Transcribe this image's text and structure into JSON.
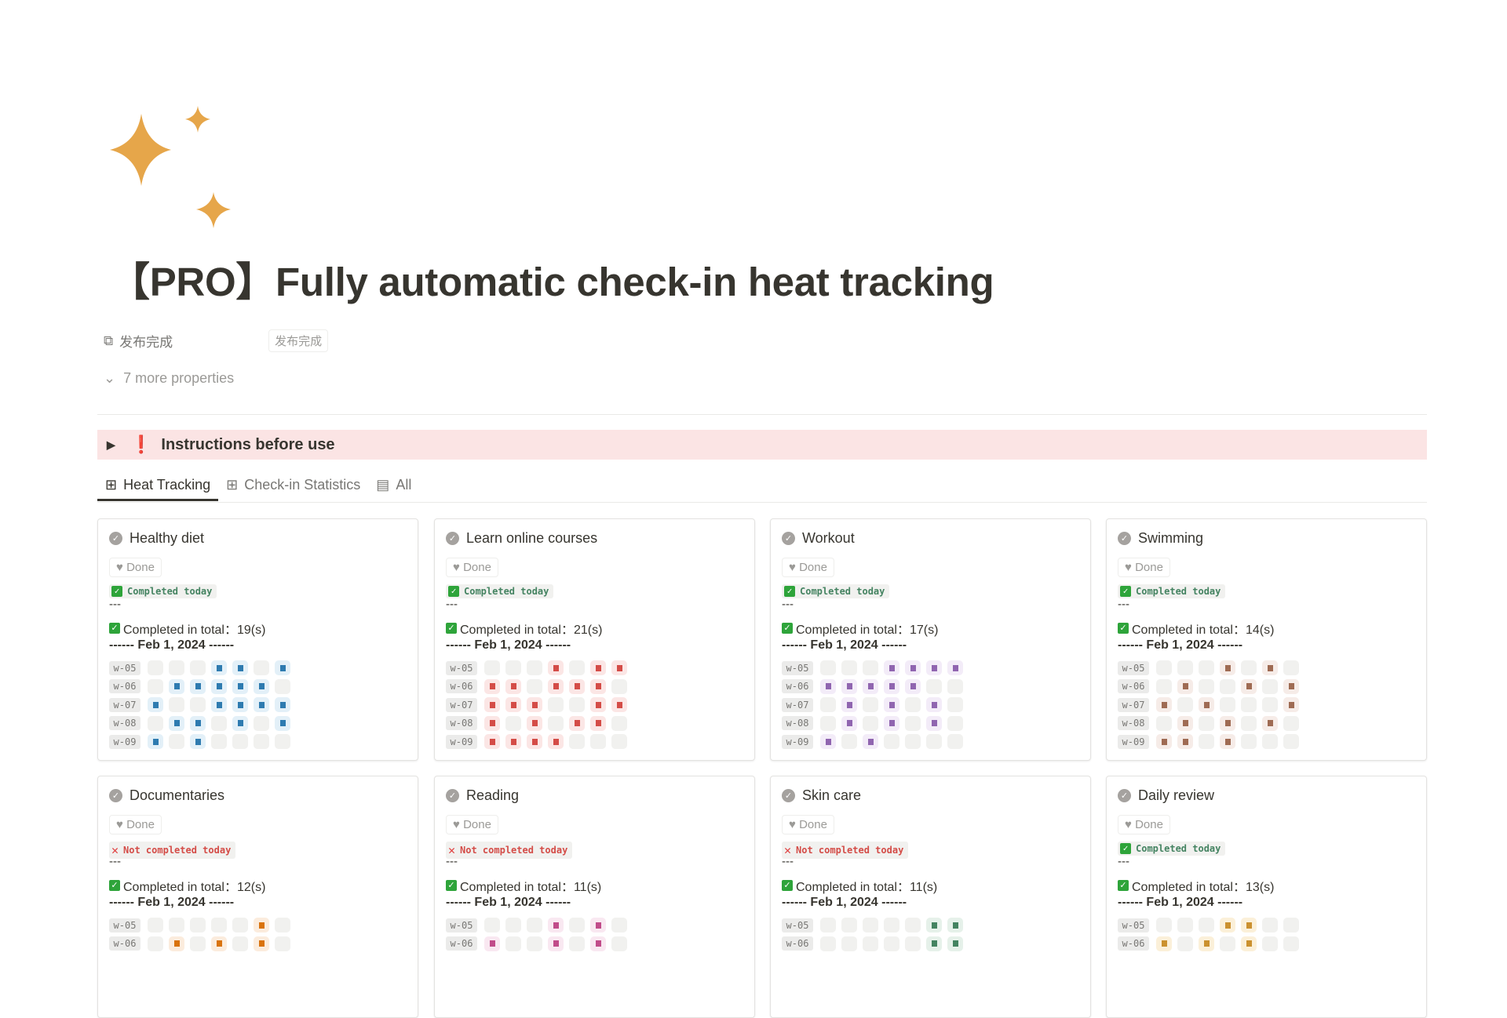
{
  "page": {
    "title": "【PRO】Fully automatic check-in heat tracking",
    "icon": "sparkles-icon",
    "property": {
      "name": "发布完成",
      "value": "发布完成"
    },
    "more_properties": "7 more properties",
    "callout": "Instructions before use",
    "tabs": [
      {
        "label": "Heat Tracking",
        "icon": "gallery-icon",
        "active": true
      },
      {
        "label": "Check-in Statistics",
        "icon": "gallery-icon",
        "active": false
      },
      {
        "label": "All",
        "icon": "table-icon",
        "active": false
      }
    ]
  },
  "cards": [
    {
      "title": "Healthy diet",
      "done": "Done",
      "status": "ok",
      "status_text": "Completed today",
      "sep": "---",
      "total": "Completed in total：19(s)",
      "date": "------ Feb 1, 2024 ------",
      "color": "#2e7bb0",
      "tint": "#e3f0f8",
      "weeks": [
        {
          "label": "w-05",
          "days": "0001101"
        },
        {
          "label": "w-06",
          "days": "0111110"
        },
        {
          "label": "w-07",
          "days": "1001111"
        },
        {
          "label": "w-08",
          "days": "0110101"
        },
        {
          "label": "w-09",
          "days": "1010000"
        }
      ]
    },
    {
      "title": "Learn online courses",
      "done": "Done",
      "status": "ok",
      "status_text": "Completed today",
      "sep": "---",
      "total": "Completed in total：21(s)",
      "date": "------ Feb 1, 2024 ------",
      "color": "#d44c47",
      "tint": "#fbe6e5",
      "weeks": [
        {
          "label": "w-05",
          "days": "0001011"
        },
        {
          "label": "w-06",
          "days": "1101110"
        },
        {
          "label": "w-07",
          "days": "1110011"
        },
        {
          "label": "w-08",
          "days": "1010110"
        },
        {
          "label": "w-09",
          "days": "1111000"
        }
      ]
    },
    {
      "title": "Workout",
      "done": "Done",
      "status": "ok",
      "status_text": "Completed today",
      "sep": "---",
      "total": "Completed in total：17(s)",
      "date": "------ Feb 1, 2024 ------",
      "color": "#9065b0",
      "tint": "#f3ecf8",
      "weeks": [
        {
          "label": "w-05",
          "days": "0001111"
        },
        {
          "label": "w-06",
          "days": "1111100"
        },
        {
          "label": "w-07",
          "days": "0101010"
        },
        {
          "label": "w-08",
          "days": "0101010"
        },
        {
          "label": "w-09",
          "days": "1010000"
        }
      ]
    },
    {
      "title": "Swimming",
      "done": "Done",
      "status": "ok",
      "status_text": "Completed today",
      "sep": "---",
      "total": "Completed in total：14(s)",
      "date": "------ Feb 1, 2024 ------",
      "color": "#9f6b53",
      "tint": "#f6ece8",
      "weeks": [
        {
          "label": "w-05",
          "days": "0001010"
        },
        {
          "label": "w-06",
          "days": "0100101"
        },
        {
          "label": "w-07",
          "days": "1010001"
        },
        {
          "label": "w-08",
          "days": "0101010"
        },
        {
          "label": "w-09",
          "days": "1101000"
        }
      ]
    },
    {
      "title": "Documentaries",
      "done": "Done",
      "status": "no",
      "status_text": "Not completed today",
      "sep": "---",
      "total": "Completed in total：12(s)",
      "date": "------ Feb 1, 2024 ------",
      "color": "#d9730d",
      "tint": "#fbecdd",
      "weeks": [
        {
          "label": "w-05",
          "days": "0000010"
        },
        {
          "label": "w-06",
          "days": "0101010"
        }
      ]
    },
    {
      "title": "Reading",
      "done": "Done",
      "status": "no",
      "status_text": "Not completed today",
      "sep": "---",
      "total": "Completed in total：11(s)",
      "date": "------ Feb 1, 2024 ------",
      "color": "#c14c8a",
      "tint": "#f9e8f1",
      "weeks": [
        {
          "label": "w-05",
          "days": "0001010"
        },
        {
          "label": "w-06",
          "days": "1001010"
        }
      ]
    },
    {
      "title": "Skin care",
      "done": "Done",
      "status": "no",
      "status_text": "Not completed today",
      "sep": "---",
      "total": "Completed in total：11(s)",
      "date": "------ Feb 1, 2024 ------",
      "color": "#448361",
      "tint": "#e6f1ea",
      "weeks": [
        {
          "label": "w-05",
          "days": "0000011"
        },
        {
          "label": "w-06",
          "days": "0000011"
        }
      ]
    },
    {
      "title": "Daily review",
      "done": "Done",
      "status": "ok",
      "status_text": "Completed today",
      "sep": "---",
      "total": "Completed in total：13(s)",
      "date": "------ Feb 1, 2024 ------",
      "color": "#cb912f",
      "tint": "#fbf0d9",
      "weeks": [
        {
          "label": "w-05",
          "days": "0001100"
        },
        {
          "label": "w-06",
          "days": "1010100"
        }
      ]
    }
  ]
}
